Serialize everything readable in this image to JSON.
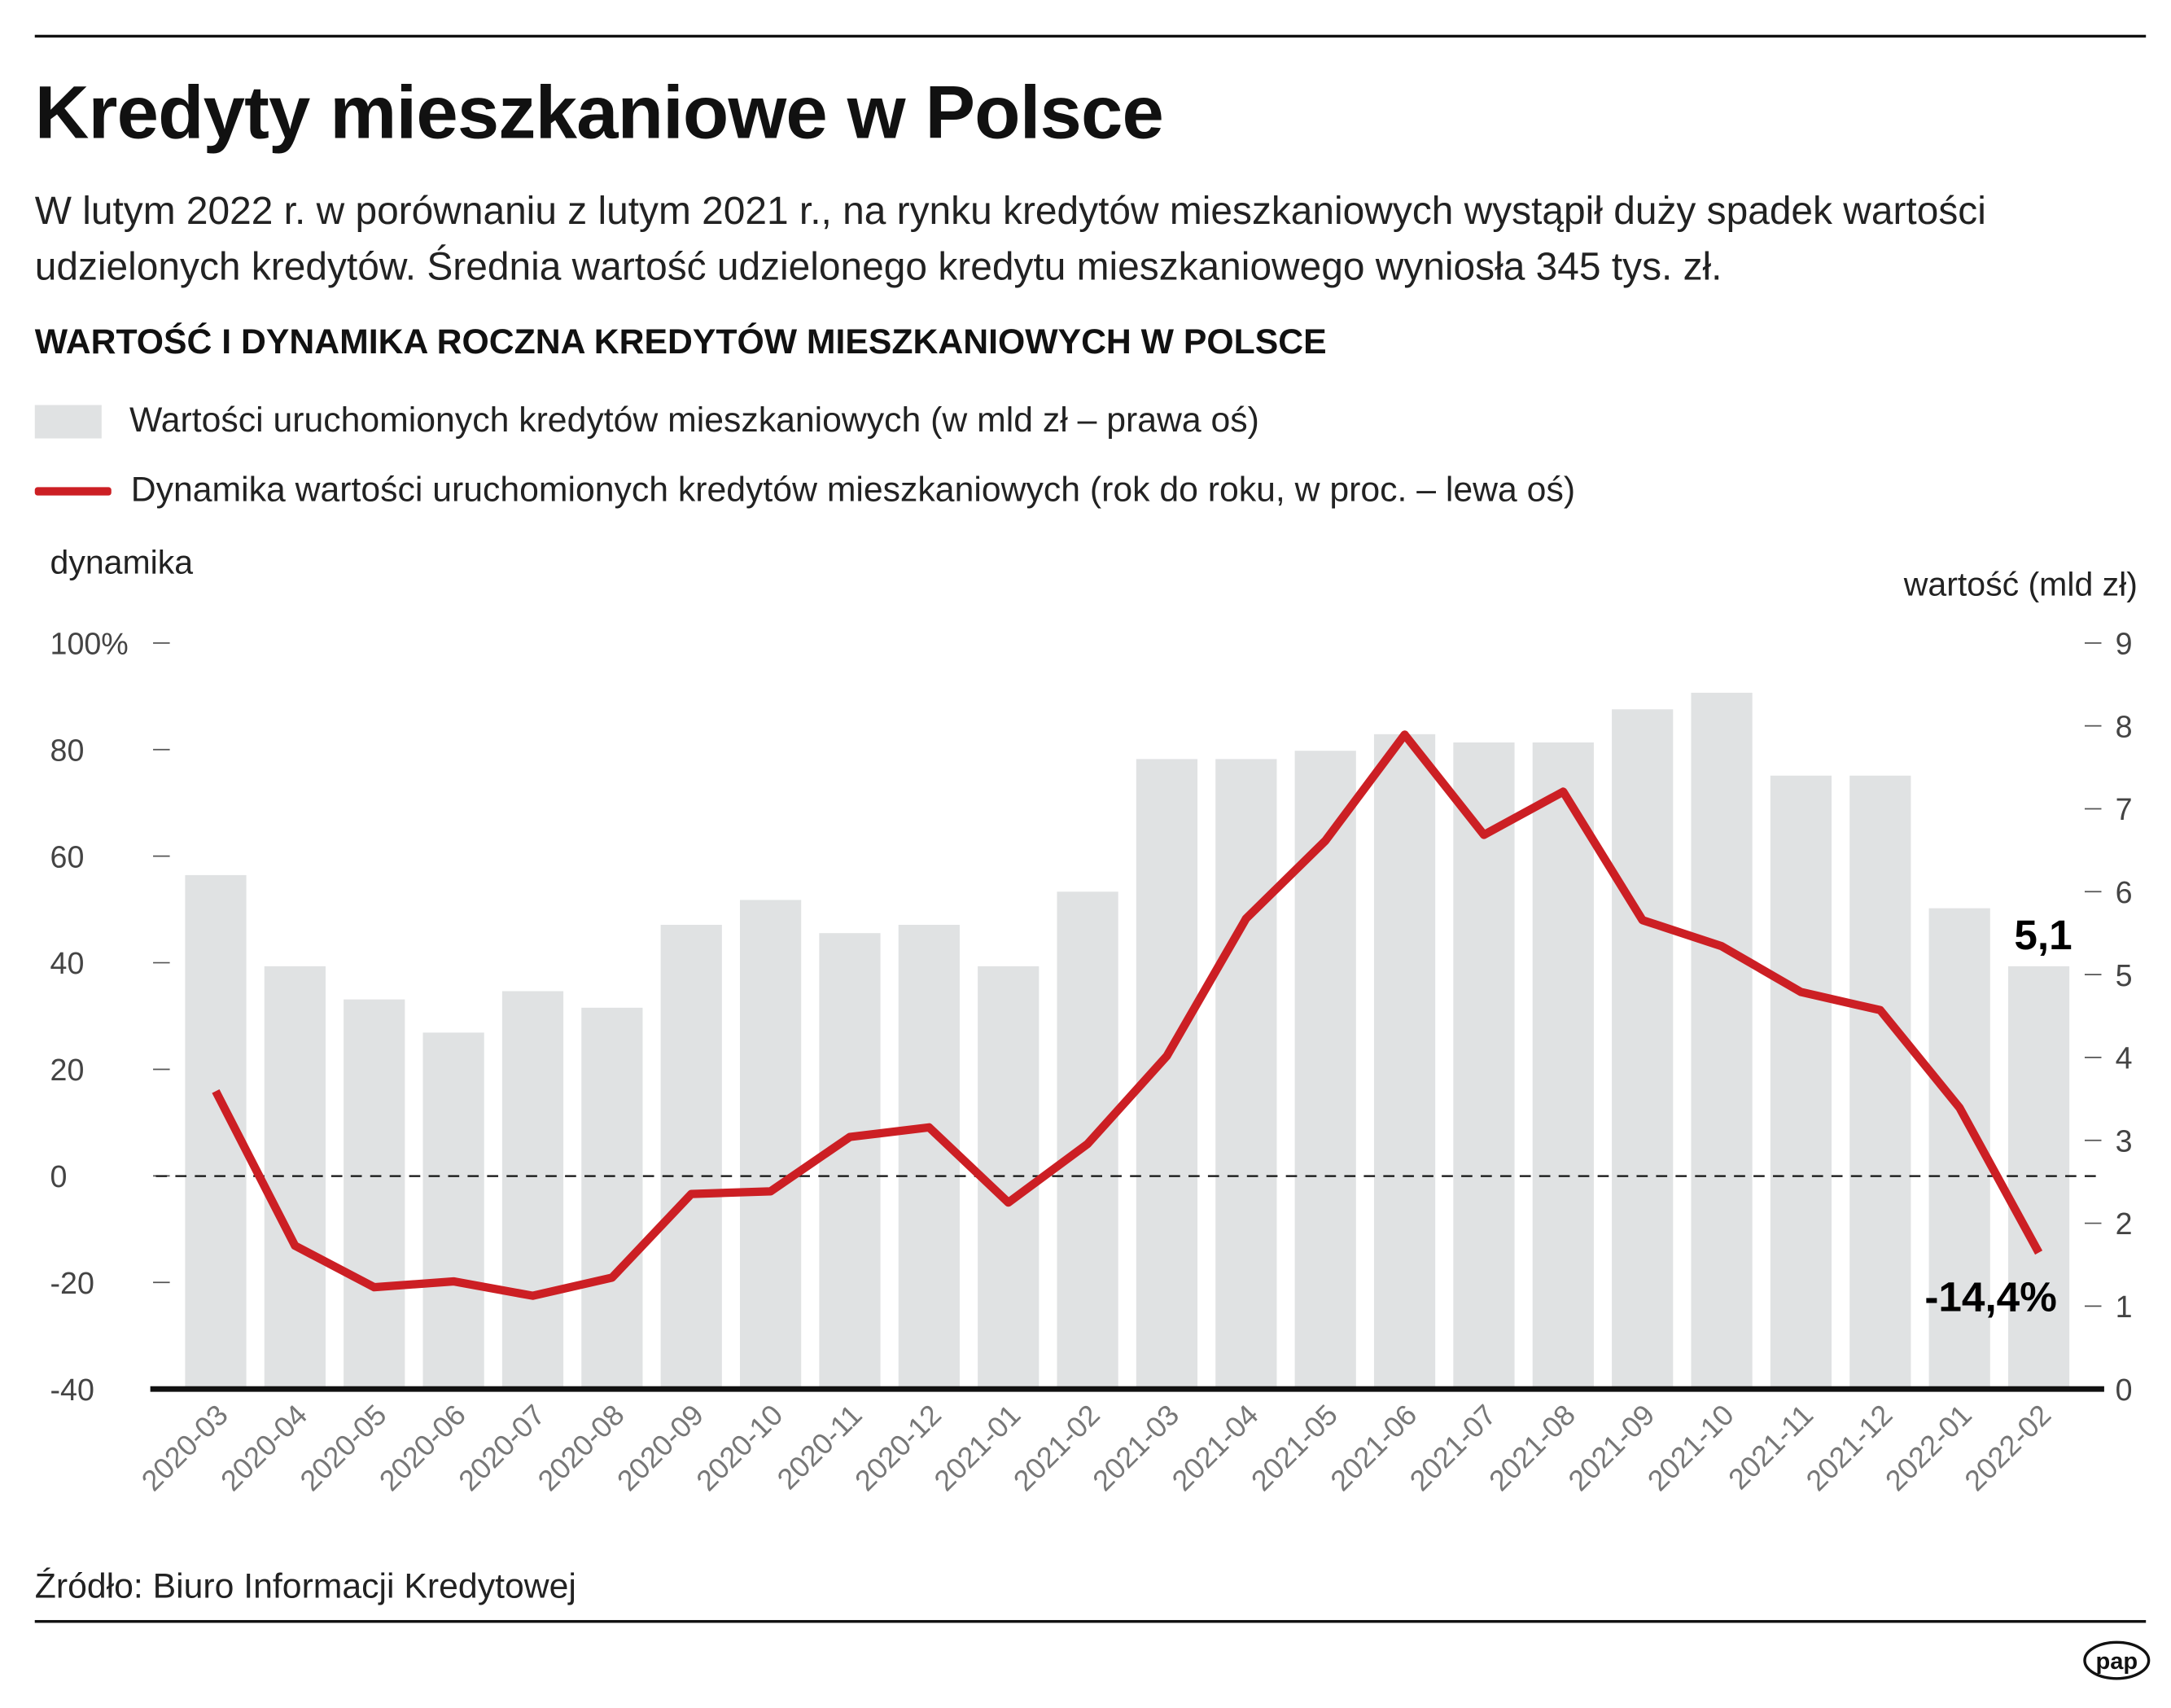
{
  "header": {
    "title": "Kredyty mieszkaniowe w Polsce",
    "subtitle": "W lutym 2022 r. w porównaniu z lutym 2021 r., na rynku kredytów mieszkaniowych wystąpił duży spadek wartości udzielonych kredytów. Średnia wartość udzielonego kredytu mieszkaniowego wyniosła 345 tys. zł."
  },
  "footer": {
    "source": "Źródło: Biuro Informacji Kredytowej",
    "logo": "pap"
  },
  "colors": {
    "bar": "#e0e2e3",
    "line": "#cc1f24",
    "axis": "#111111"
  },
  "chart_data": {
    "type": "bar+line",
    "title": "WARTOŚĆ I DYNAMIKA ROCZNA KREDYTÓW MIESZKANIOWYCH W POLSCE",
    "legend": [
      "Wartości uruchomionych kredytów mieszkaniowych (w mld zł  – prawa oś)",
      "Dynamika wartości uruchomionych kredytów mieszkaniowych (rok do roku, w proc. – lewa oś)"
    ],
    "ylabel_left": "dynamika",
    "ylabel_right": "wartość (mld zł)",
    "ylim_left": [
      -40,
      100
    ],
    "yticks_left": [
      "-40",
      "-20",
      "0",
      "20",
      "40",
      "60",
      "80",
      "100%"
    ],
    "ylim_right": [
      0,
      9
    ],
    "yticks_right": [
      "0",
      "1",
      "2",
      "3",
      "4",
      "5",
      "6",
      "7",
      "8",
      "9"
    ],
    "categories": [
      "2020-03",
      "2020-04",
      "2020-05",
      "2020-06",
      "2020-07",
      "2020-08",
      "2020-09",
      "2020-10",
      "2020-11",
      "2020-12",
      "2021-01",
      "2021-02",
      "2021-03",
      "2021-04",
      "2021-05",
      "2021-06",
      "2021-07",
      "2021-08",
      "2021-09",
      "2021-10",
      "2021-11",
      "2021-12",
      "2022-01",
      "2022-02"
    ],
    "series": [
      {
        "name": "wartość (mld zł)",
        "axis": "right",
        "type": "bar",
        "values": [
          6.2,
          5.1,
          4.7,
          4.3,
          4.8,
          4.6,
          5.6,
          5.9,
          5.5,
          5.6,
          5.1,
          6.0,
          7.6,
          7.6,
          7.7,
          7.9,
          7.8,
          7.8,
          8.2,
          8.4,
          7.4,
          7.4,
          5.8,
          5.1
        ]
      },
      {
        "name": "dynamika (%)",
        "axis": "left",
        "type": "line",
        "values": [
          15.9,
          -13.1,
          -20.9,
          -19.8,
          -22.5,
          -19.1,
          -3.4,
          -2.9,
          7.3,
          9.1,
          -5.0,
          6.0,
          22.5,
          48.3,
          62.9,
          82.8,
          64.0,
          72.1,
          48.0,
          43.1,
          34.5,
          31.1,
          12.8,
          -14.4
        ]
      }
    ],
    "annotations": {
      "last_bar": "5,1",
      "last_line": "-14,4%"
    }
  }
}
